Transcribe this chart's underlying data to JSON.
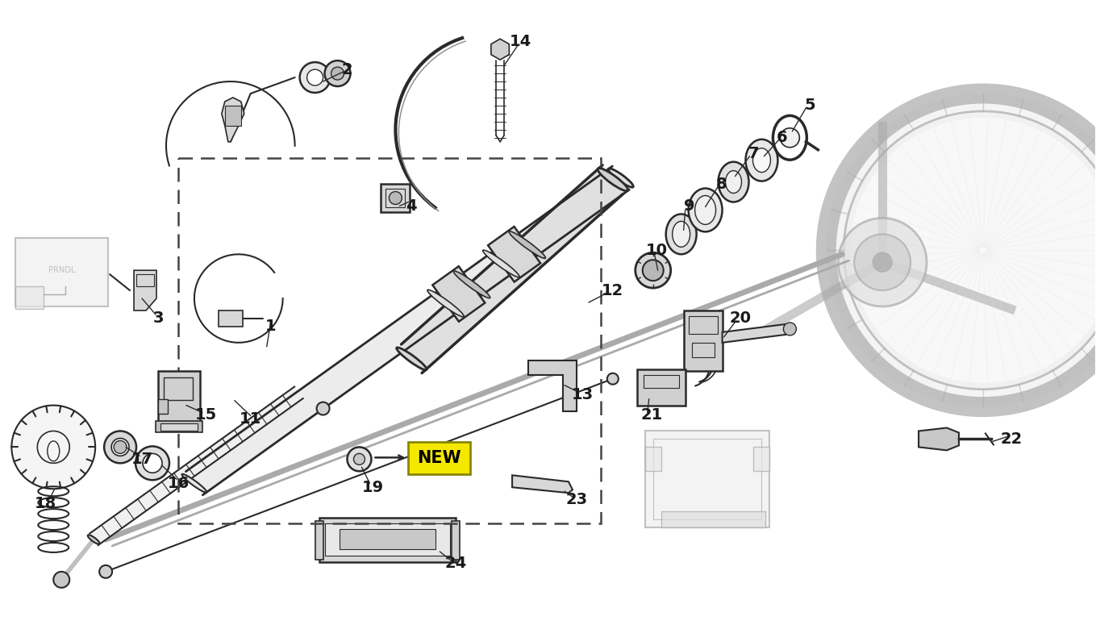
{
  "bg": "#ffffff",
  "lc": "#2a2a2a",
  "lgray": "#aaaaaa",
  "mgray": "#888888",
  "partgray": "#d0d0d0",
  "new_bg": "#f5e800",
  "figsize": [
    13.59,
    7.75
  ],
  "dpi": 100
}
